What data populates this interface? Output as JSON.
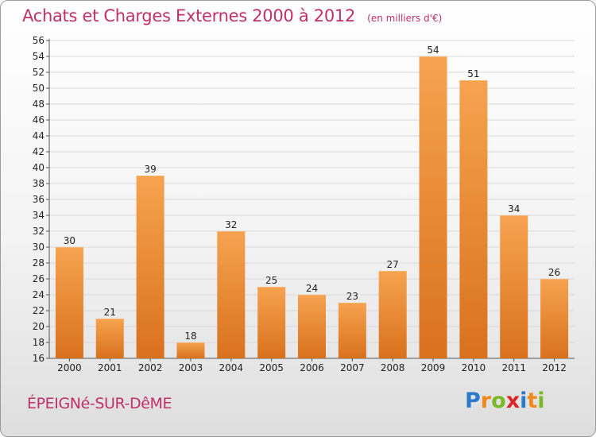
{
  "header": {
    "title": "Achats et Charges Externes 2000 à 2012",
    "unit": "(en milliers d'€)"
  },
  "footer": {
    "place": "ÉPEIGNé-SUR-DêME",
    "logo": "Proxiti"
  },
  "colors": {
    "title": "#c0306b",
    "bar_light": "#f6a34f",
    "bar_dark": "#d9711d"
  },
  "chart_data": {
    "type": "bar",
    "title": "Achats et Charges Externes 2000 à 2012",
    "subtitle": "(en milliers d'€)",
    "categories": [
      "2000",
      "2001",
      "2002",
      "2003",
      "2004",
      "2005",
      "2006",
      "2007",
      "2008",
      "2009",
      "2010",
      "2011",
      "2012"
    ],
    "values": [
      30,
      21,
      39,
      18,
      32,
      25,
      24,
      23,
      27,
      54,
      51,
      34,
      26
    ],
    "ylim": [
      16,
      56
    ],
    "ytick_step": 2,
    "grid": true,
    "data_labels": true
  }
}
